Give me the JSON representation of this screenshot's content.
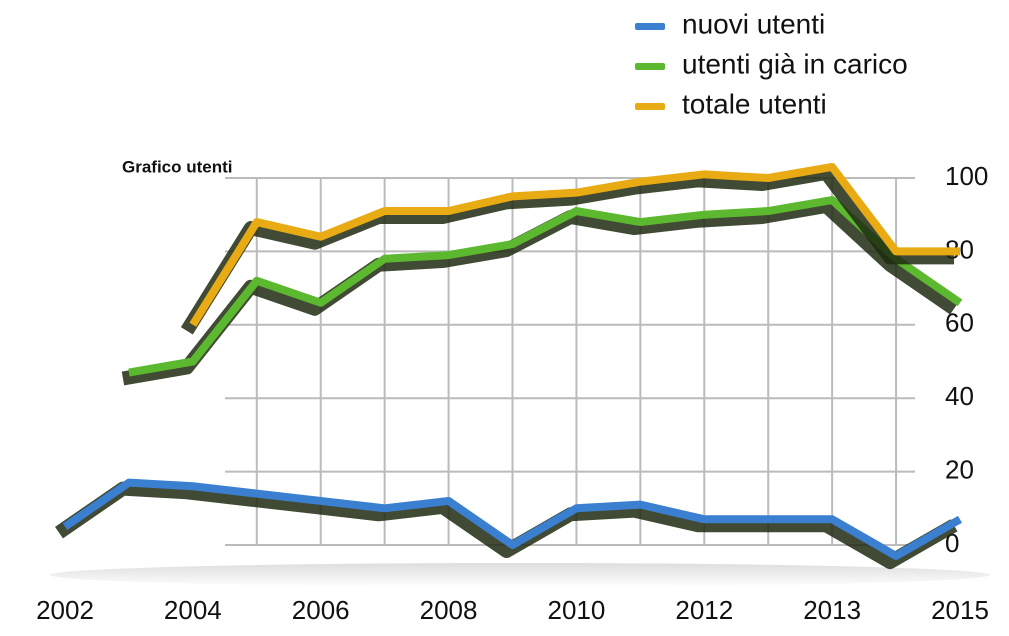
{
  "chart_data": {
    "type": "line",
    "title": "Grafico utenti",
    "categories": [
      "2002",
      null,
      "2004",
      null,
      "2006",
      null,
      "2008",
      null,
      "2010",
      null,
      "2012",
      null,
      "2013",
      null,
      "2015"
    ],
    "series": [
      {
        "name": "nuovi utenti",
        "color": "#3a7fd0",
        "values": [
          5,
          17,
          16,
          14,
          12,
          10,
          12,
          0,
          10,
          11,
          7,
          7,
          7,
          -3,
          7
        ]
      },
      {
        "name": "utenti già in carico",
        "color": "#5cb82e",
        "values": [
          null,
          47,
          50,
          72,
          66,
          78,
          79,
          82,
          91,
          88,
          90,
          91,
          94,
          78,
          66
        ]
      },
      {
        "name": "totale utenti",
        "color": "#e8ab14",
        "values": [
          null,
          null,
          60,
          88,
          84,
          91,
          91,
          95,
          96,
          99,
          101,
          100,
          103,
          80,
          80
        ]
      }
    ],
    "ylim": [
      0,
      100
    ],
    "yticks": [
      0,
      20,
      40,
      60,
      80,
      100
    ],
    "grid": true,
    "legend": "top-right"
  }
}
